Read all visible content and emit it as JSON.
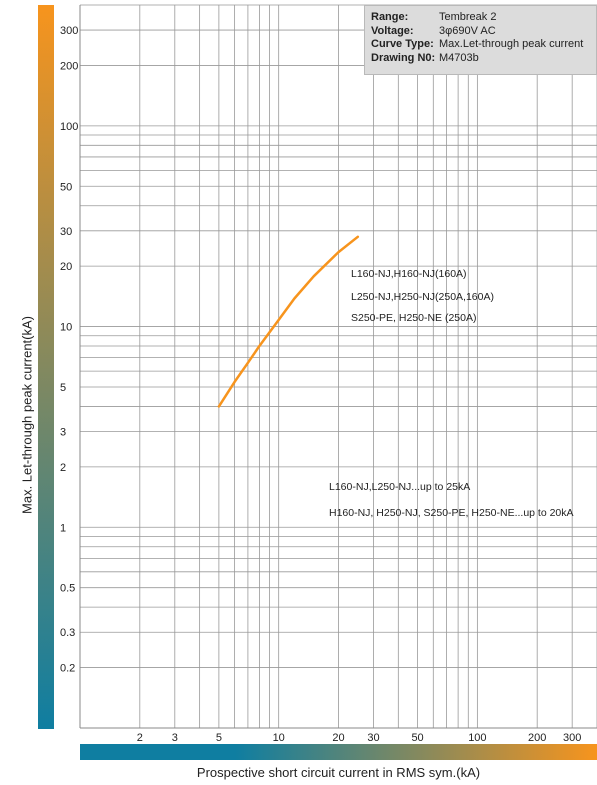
{
  "info_box": {
    "range_label": "Range:",
    "range_value": "Tembreak 2",
    "voltage_label": "Voltage:",
    "voltage_value": "3φ690V AC",
    "curve_label": "Curve Type:",
    "curve_value": "Max.Let-through peak current",
    "drawing_label": "Drawing N0:",
    "drawing_value": "M4703b"
  },
  "annotations": {
    "models_1": "L160-NJ,H160-NJ(160A)",
    "models_2": "L250-NJ,H250-NJ(250A,160A)",
    "models_3": "S250-PE, H250-NE (250A)",
    "rating_1": "L160-NJ,L250-NJ...up to 25kA",
    "rating_2": "H160-NJ, H250-NJ, S250-PE, H250-NE...up to 20kA"
  },
  "colors": {
    "curve": "#f7941d",
    "grid": "#999999",
    "bar_start": "#0f7ea1",
    "bar_end": "#f7941d"
  },
  "chart_data": {
    "type": "line",
    "xlabel": "Prospective short circuit current in RMS sym.(kA)",
    "ylabel": "Max. Let-through peak current(kA)",
    "x_scale": "log",
    "y_scale": "log",
    "xlim": [
      1,
      400
    ],
    "ylim": [
      0.1,
      400
    ],
    "x_ticks": [
      2,
      3,
      5,
      10,
      20,
      30,
      50,
      100,
      200,
      300
    ],
    "y_ticks": [
      0.2,
      0.3,
      0.5,
      1,
      2,
      3,
      5,
      10,
      20,
      30,
      50,
      100,
      200,
      300
    ],
    "grid": true,
    "series": [
      {
        "x": [
          5,
          6,
          7,
          8,
          10,
          12,
          15,
          20,
          25
        ],
        "y": [
          4,
          5.3,
          6.6,
          8,
          10.8,
          13.8,
          17.8,
          23.5,
          28
        ]
      }
    ]
  }
}
